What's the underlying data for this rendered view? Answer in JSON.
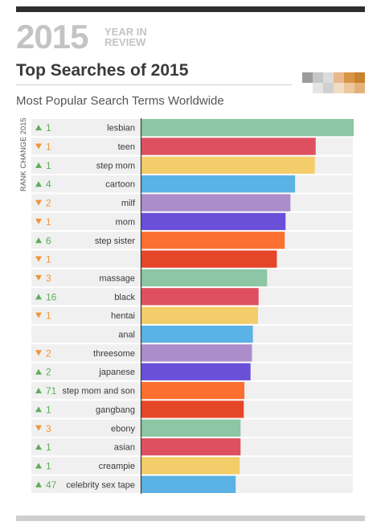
{
  "header": {
    "year": "2015",
    "tagline_line1": "YEAR IN",
    "tagline_line2": "REVIEW",
    "title": "Top Searches of 2015",
    "subtitle": "Most Popular Search Terms Worldwide"
  },
  "colors": {
    "up": "#5fae5a",
    "down": "#f0953a",
    "row_bg": "#f0f0f0",
    "palette": [
      "#8dc6a4",
      "#de5060",
      "#f2cd6a",
      "#5bb2e4",
      "#ac8dcb",
      "#6a4fd8",
      "#fb6f30",
      "#e64628"
    ]
  },
  "chart_data": {
    "type": "bar",
    "orientation": "horizontal",
    "title": "Most Popular Search Terms Worldwide",
    "ylabel": "RANK CHANGE 2015",
    "grid": false,
    "categories": [
      "lesbian",
      "teen",
      "step mom",
      "cartoon",
      "milf",
      "mom",
      "step sister",
      "",
      "massage",
      "black",
      "hentai",
      "anal",
      "threesome",
      "japanese",
      "step mom and son",
      "gangbang",
      "ebony",
      "asian",
      "creampie",
      "celebrity sex tape"
    ],
    "values": [
      100,
      82.1,
      81.7,
      72.4,
      70.2,
      67.9,
      67.5,
      63.8,
      59.2,
      55.2,
      54.9,
      52.5,
      52.1,
      51.4,
      48.5,
      48.2,
      46.7,
      46.7,
      46.3,
      44.4
    ],
    "rank_change": [
      {
        "dir": "up",
        "value": "1"
      },
      {
        "dir": "down",
        "value": "1"
      },
      {
        "dir": "up",
        "value": "1"
      },
      {
        "dir": "up",
        "value": "4"
      },
      {
        "dir": "down",
        "value": "2"
      },
      {
        "dir": "down",
        "value": "1"
      },
      {
        "dir": "up",
        "value": "6"
      },
      {
        "dir": "down",
        "value": "1"
      },
      {
        "dir": "down",
        "value": "3"
      },
      {
        "dir": "up",
        "value": "16"
      },
      {
        "dir": "down",
        "value": "1"
      },
      {
        "dir": "none",
        "value": ""
      },
      {
        "dir": "down",
        "value": "2"
      },
      {
        "dir": "up",
        "value": "2"
      },
      {
        "dir": "up",
        "value": "71"
      },
      {
        "dir": "up",
        "value": "1"
      },
      {
        "dir": "down",
        "value": "3"
      },
      {
        "dir": "up",
        "value": "1"
      },
      {
        "dir": "up",
        "value": "1"
      },
      {
        "dir": "up",
        "value": "47"
      }
    ],
    "xlim": [
      0,
      100
    ]
  }
}
